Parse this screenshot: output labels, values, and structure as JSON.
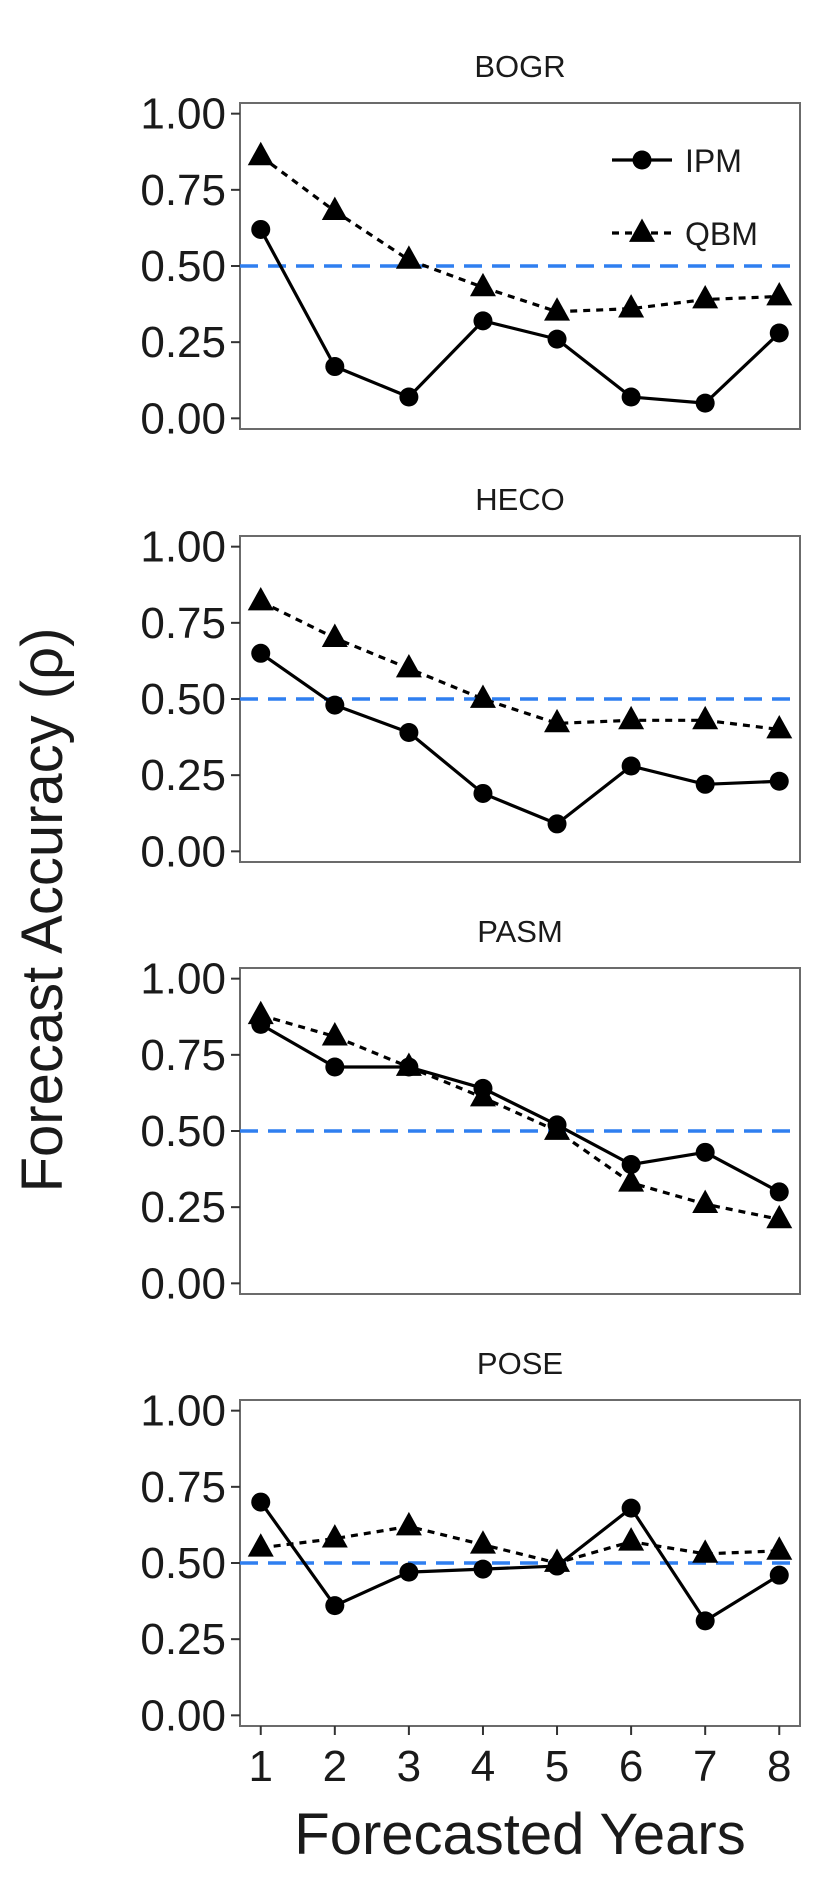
{
  "chart_data": {
    "type": "line",
    "xlabel": "Forecasted Years",
    "ylabel": "Forecast Accuracy (ρ)",
    "x": [
      1,
      2,
      3,
      4,
      5,
      6,
      7,
      8
    ],
    "x_ticks": [
      "1",
      "2",
      "3",
      "4",
      "5",
      "6",
      "7",
      "8"
    ],
    "ylim": [
      0,
      1
    ],
    "y_ticks": [
      "0.00",
      "0.25",
      "0.50",
      "0.75",
      "1.00"
    ],
    "reference_line": {
      "y": 0.5,
      "style": "dashed",
      "color": "#2f7ff0"
    },
    "grid": false,
    "legend": {
      "placement": "top-right of first panel",
      "entries": [
        {
          "label": "IPM",
          "marker": "circle",
          "line": "solid"
        },
        {
          "label": "QBM",
          "marker": "triangle",
          "line": "dotted"
        }
      ]
    },
    "panels": [
      {
        "title": "BOGR",
        "series": [
          {
            "name": "IPM",
            "values": [
              0.62,
              0.17,
              0.07,
              0.32,
              0.26,
              0.07,
              0.05,
              0.28
            ]
          },
          {
            "name": "QBM",
            "values": [
              0.86,
              0.68,
              0.52,
              0.43,
              0.35,
              0.36,
              0.39,
              0.4
            ]
          }
        ]
      },
      {
        "title": "HECO",
        "series": [
          {
            "name": "IPM",
            "values": [
              0.65,
              0.48,
              0.39,
              0.19,
              0.09,
              0.28,
              0.22,
              0.23
            ]
          },
          {
            "name": "QBM",
            "values": [
              0.82,
              0.7,
              0.6,
              0.5,
              0.42,
              0.43,
              0.43,
              0.4
            ]
          }
        ]
      },
      {
        "title": "PASM",
        "series": [
          {
            "name": "IPM",
            "values": [
              0.85,
              0.71,
              0.71,
              0.64,
              0.52,
              0.39,
              0.43,
              0.3
            ]
          },
          {
            "name": "QBM",
            "values": [
              0.88,
              0.81,
              0.71,
              0.61,
              0.5,
              0.33,
              0.26,
              0.21
            ]
          }
        ]
      },
      {
        "title": "POSE",
        "series": [
          {
            "name": "IPM",
            "values": [
              0.7,
              0.36,
              0.47,
              0.48,
              0.49,
              0.68,
              0.31,
              0.46
            ]
          },
          {
            "name": "QBM",
            "values": [
              0.55,
              0.58,
              0.62,
              0.56,
              0.5,
              0.57,
              0.53,
              0.54
            ]
          }
        ]
      }
    ]
  }
}
